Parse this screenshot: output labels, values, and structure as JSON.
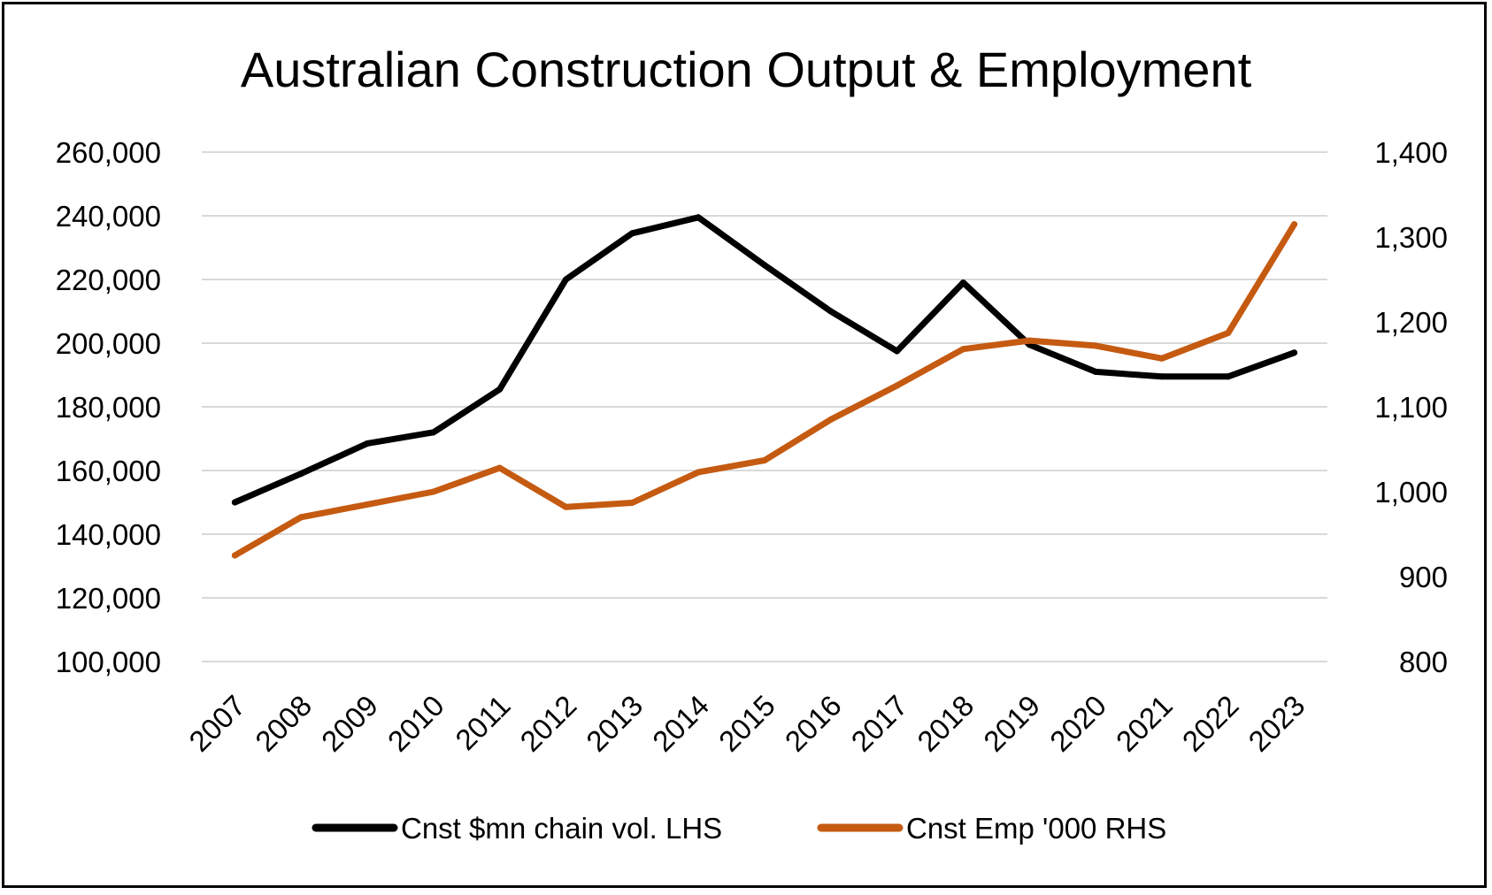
{
  "chart_data": {
    "type": "line",
    "title": "Australian Construction Output & Employment",
    "categories": [
      "2007",
      "2008",
      "2009",
      "2010",
      "2011",
      "2012",
      "2013",
      "2014",
      "2015",
      "2016",
      "2017",
      "2018",
      "2019",
      "2020",
      "2021",
      "2022",
      "2023"
    ],
    "left_axis": {
      "ylim": [
        100000,
        260000
      ],
      "ticks": [
        100000,
        120000,
        140000,
        160000,
        180000,
        200000,
        220000,
        240000,
        260000
      ],
      "tick_labels": [
        "100,000",
        "120,000",
        "140,000",
        "160,000",
        "180,000",
        "200,000",
        "220,000",
        "240,000",
        "260,000"
      ]
    },
    "right_axis": {
      "ylim": [
        800,
        1400
      ],
      "ticks": [
        800,
        900,
        1000,
        1100,
        1200,
        1300,
        1400
      ],
      "tick_labels": [
        "800",
        "900",
        "1,000",
        "1,100",
        "1,200",
        "1,300",
        "1,400"
      ]
    },
    "series": [
      {
        "name": "Cnst $mn chain vol. LHS",
        "axis": "left",
        "color": "#000000",
        "values": [
          150000,
          159000,
          168500,
          172000,
          185500,
          220000,
          234500,
          239500,
          224500,
          210000,
          197500,
          219000,
          199500,
          191000,
          189500,
          189500,
          197000
        ]
      },
      {
        "name": "Cnst Emp '000 RHS",
        "axis": "right",
        "color": "#c55a11",
        "values": [
          925,
          970,
          985,
          1000,
          1028,
          982,
          987,
          1023,
          1037,
          1085,
          1125,
          1168,
          1178,
          1172,
          1157,
          1187,
          1315
        ]
      }
    ],
    "legend_position": "bottom",
    "grid": true
  }
}
